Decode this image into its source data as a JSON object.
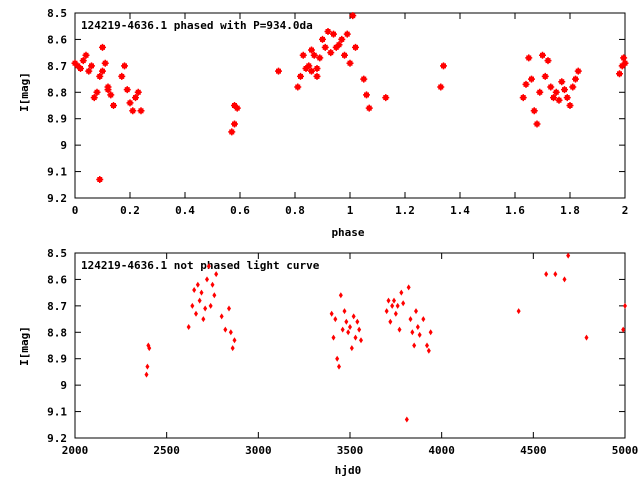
{
  "chart_data": [
    {
      "type": "scatter",
      "title": "124219-4636.1 phased with P=934.0da",
      "xlabel": "phase",
      "ylabel": "I[mag]",
      "xlim": [
        0,
        2
      ],
      "ylim": [
        8.5,
        9.2
      ],
      "y_inverted": true,
      "grid": false,
      "legend": "none",
      "x_ticks": [
        "0",
        "0.2",
        "0.4",
        "0.6",
        "0.8",
        "1",
        "1.2",
        "1.4",
        "1.6",
        "1.8",
        "2"
      ],
      "y_ticks": [
        "8.5",
        "8.6",
        "8.7",
        "8.8",
        "8.9",
        "9",
        "9.1",
        "9.2"
      ],
      "marker_color": "#ff0000",
      "series": [
        {
          "x": [
            0.0,
            0.01,
            0.02,
            0.03,
            0.04,
            0.05,
            0.06,
            0.07,
            0.08,
            0.09,
            0.1,
            0.1,
            0.11,
            0.12,
            0.12,
            0.13,
            0.14,
            0.17,
            0.18,
            0.19,
            0.2,
            0.21,
            0.22,
            0.23,
            0.24,
            0.57,
            0.58,
            0.58,
            0.59,
            0.74,
            0.81,
            0.82,
            0.83,
            0.84,
            0.85,
            0.86,
            0.86,
            0.87,
            0.88,
            0.88,
            0.89,
            0.9,
            0.91,
            0.92,
            0.93,
            0.94,
            0.95,
            0.96,
            0.97,
            0.98,
            0.99,
            1.0,
            1.01,
            1.02,
            1.05,
            1.06,
            1.07,
            1.13,
            1.33,
            1.34,
            1.63,
            1.64,
            1.65,
            1.66,
            1.67,
            1.68,
            1.69,
            1.7,
            1.71,
            1.72,
            1.73,
            1.74,
            1.75,
            1.76,
            1.77,
            1.78,
            1.79,
            1.8,
            1.81,
            1.82,
            1.83,
            1.98,
            1.99,
            2.0,
            1.995,
            0.09
          ],
          "y": [
            8.69,
            8.7,
            8.71,
            8.68,
            8.66,
            8.72,
            8.7,
            8.82,
            8.8,
            8.74,
            8.72,
            8.63,
            8.69,
            8.79,
            8.78,
            8.81,
            8.85,
            8.74,
            8.7,
            8.79,
            8.84,
            8.87,
            8.82,
            8.8,
            8.87,
            8.95,
            8.92,
            8.85,
            8.86,
            8.72,
            8.78,
            8.74,
            8.66,
            8.71,
            8.7,
            8.64,
            8.72,
            8.66,
            8.74,
            8.71,
            8.67,
            8.6,
            8.63,
            8.57,
            8.65,
            8.58,
            8.63,
            8.62,
            8.6,
            8.66,
            8.58,
            8.69,
            8.51,
            8.63,
            8.75,
            8.81,
            8.86,
            8.82,
            8.78,
            8.7,
            8.82,
            8.77,
            8.67,
            8.75,
            8.87,
            8.92,
            8.8,
            8.66,
            8.74,
            8.68,
            8.78,
            8.82,
            8.8,
            8.83,
            8.76,
            8.79,
            8.82,
            8.85,
            8.78,
            8.75,
            8.72,
            8.73,
            8.7,
            8.69,
            8.67,
            9.13
          ]
        }
      ]
    },
    {
      "type": "scatter",
      "title": "124219-4636.1 not phased light curve",
      "xlabel": "hjd0",
      "ylabel": "I[mag]",
      "xlim": [
        2000,
        5000
      ],
      "ylim": [
        8.5,
        9.2
      ],
      "y_inverted": true,
      "grid": false,
      "legend": "none",
      "x_ticks": [
        "2000",
        "2500",
        "3000",
        "3500",
        "4000",
        "4500",
        "5000"
      ],
      "y_ticks": [
        "8.5",
        "8.6",
        "8.7",
        "8.8",
        "8.9",
        "9",
        "9.1",
        "9.2"
      ],
      "marker_color": "#ff0000",
      "series": [
        {
          "x": [
            2390,
            2395,
            2400,
            2405,
            2620,
            2640,
            2650,
            2660,
            2670,
            2680,
            2690,
            2700,
            2710,
            2720,
            2730,
            2740,
            2750,
            2760,
            2770,
            2800,
            2820,
            2840,
            2850,
            2860,
            2870,
            3400,
            3410,
            3420,
            3430,
            3440,
            3450,
            3460,
            3470,
            3480,
            3490,
            3500,
            3510,
            3520,
            3530,
            3540,
            3550,
            3560,
            3700,
            3710,
            3720,
            3730,
            3740,
            3750,
            3760,
            3770,
            3780,
            3790,
            3810,
            3820,
            3830,
            3840,
            3850,
            3860,
            3870,
            3880,
            3900,
            3920,
            3930,
            3940,
            4420,
            4570,
            4620,
            4670,
            4690,
            4790,
            4990,
            5000
          ],
          "y": [
            8.96,
            8.93,
            8.85,
            8.86,
            8.78,
            8.7,
            8.64,
            8.73,
            8.62,
            8.68,
            8.65,
            8.75,
            8.71,
            8.6,
            8.55,
            8.7,
            8.62,
            8.66,
            8.58,
            8.74,
            8.79,
            8.71,
            8.8,
            8.86,
            8.83,
            8.73,
            8.82,
            8.75,
            8.9,
            8.93,
            8.66,
            8.79,
            8.72,
            8.76,
            8.8,
            8.78,
            8.86,
            8.74,
            8.82,
            8.76,
            8.79,
            8.83,
            8.72,
            8.68,
            8.76,
            8.7,
            8.68,
            8.73,
            8.7,
            8.79,
            8.65,
            8.69,
            9.13,
            8.63,
            8.75,
            8.8,
            8.85,
            8.72,
            8.78,
            8.81,
            8.75,
            8.85,
            8.87,
            8.8,
            8.72,
            8.58,
            8.58,
            8.6,
            8.51,
            8.82,
            8.79,
            8.7
          ]
        }
      ]
    }
  ]
}
